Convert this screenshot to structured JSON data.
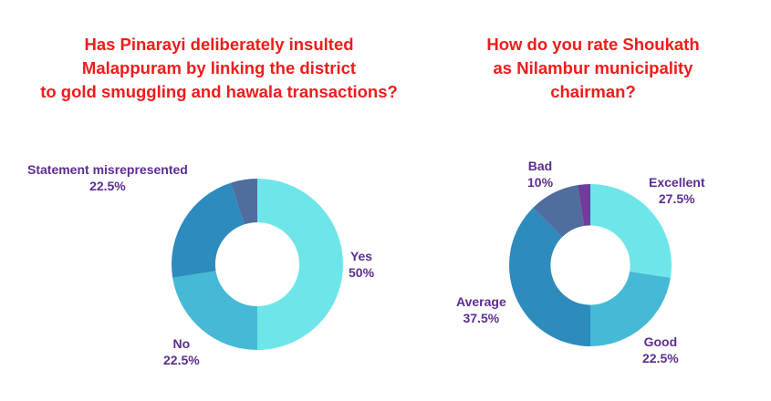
{
  "chart_data": [
    {
      "type": "pie",
      "title": "Has Pinarayi deliberately insulted\nMalappuram by linking the district\nto gold smuggling and hawala transactions?",
      "categories": [
        "Yes",
        "No",
        "Statement misrepresented",
        ""
      ],
      "values": [
        50,
        22.5,
        22.5,
        5
      ],
      "value_labels": [
        "50%",
        "22.5%",
        "22.5%",
        ""
      ],
      "colors": [
        "#6ee6e9",
        "#45b9d6",
        "#2d8bbd",
        "#4f6d9d"
      ]
    },
    {
      "type": "pie",
      "title": "How do you rate  Shoukath\nas Nilambur municipality\nchairman?",
      "categories": [
        "Excellent",
        "Good",
        "Average",
        "Bad",
        ""
      ],
      "values": [
        27.5,
        22.5,
        37.5,
        10,
        2.5
      ],
      "value_labels": [
        "27.5%",
        "22.5%",
        "37.5%",
        "10%",
        ""
      ],
      "colors": [
        "#6ee6e9",
        "#45b9d6",
        "#2d8bbd",
        "#4f6d9d",
        "#6b3f9b"
      ]
    }
  ]
}
